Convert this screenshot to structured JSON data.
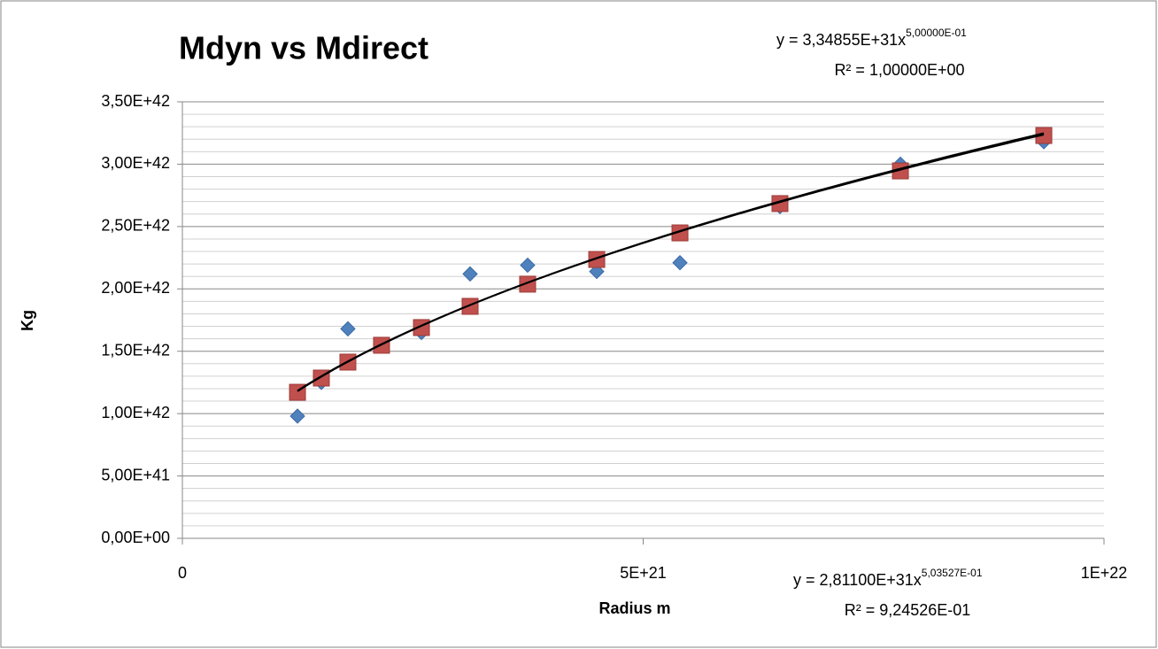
{
  "chart_data": {
    "type": "scatter",
    "title": "Mdyn vs Mdirect",
    "x_label": "Radius m",
    "y_label": "Kg",
    "x": [
      1.249e+21,
      1.508e+21,
      1.796e+21,
      2.161e+21,
      2.594e+21,
      3.122e+21,
      3.746e+21,
      4.496e+21,
      5.399e+21,
      6.484e+21,
      7.791e+21,
      9.347e+21
    ],
    "series": [
      {
        "color": "#4f81bd",
        "marker": "diamond",
        "values": [
          9.8e+41,
          1.25e+42,
          1.68e+42,
          1.55e+42,
          1.65e+42,
          2.12e+42,
          2.19e+42,
          2.14e+42,
          2.21e+42,
          2.66e+42,
          3e+42,
          3.18e+42
        ]
      },
      {
        "color": "#c0504d",
        "marker": "square",
        "values": [
          1.171e+42,
          1.285e+42,
          1.413e+42,
          1.548e+42,
          1.69e+42,
          1.86e+42,
          2.038e+42,
          2.236e+42,
          2.449e+42,
          2.684e+42,
          2.946e+42,
          3.23e+42
        ]
      }
    ],
    "trendlines": [
      {
        "coefficient": 3.34855e+31,
        "power": 0.5,
        "equation": "y = 3,34855E+31x",
        "exponent": "5,00000E-01",
        "r_squared": "R² = 1,00000E+00"
      },
      {
        "coefficient": 2.811e+31,
        "power": 0.503527,
        "equation": "y = 2,81100E+31x",
        "exponent": "5,03527E-01",
        "r_squared": "R² = 9,24526E-01"
      }
    ],
    "xlim": [
      0,
      1e+22
    ],
    "xticks": [
      0,
      {
        "value": 5e+21,
        "label": "5E+21"
      },
      {
        "value": 1e+22,
        "label": "1E+22"
      }
    ],
    "ylim": [
      0,
      3.5e+42
    ],
    "yticks": [
      {
        "value": 0,
        "label": "0,00E+00"
      },
      {
        "value": 5e+41,
        "label": "5,00E+41"
      },
      {
        "value": 1e+42,
        "label": "1,00E+42"
      },
      {
        "value": 1.5e+42,
        "label": "1,50E+42"
      },
      {
        "value": 2e+42,
        "label": "2,00E+42"
      },
      {
        "value": 2.5e+42,
        "label": "2,50E+42"
      },
      {
        "value": 3e+42,
        "label": "3,00E+42"
      },
      {
        "value": 3.5e+42,
        "label": "3,50E+42"
      }
    ],
    "grid": true,
    "minor_grid": true
  }
}
